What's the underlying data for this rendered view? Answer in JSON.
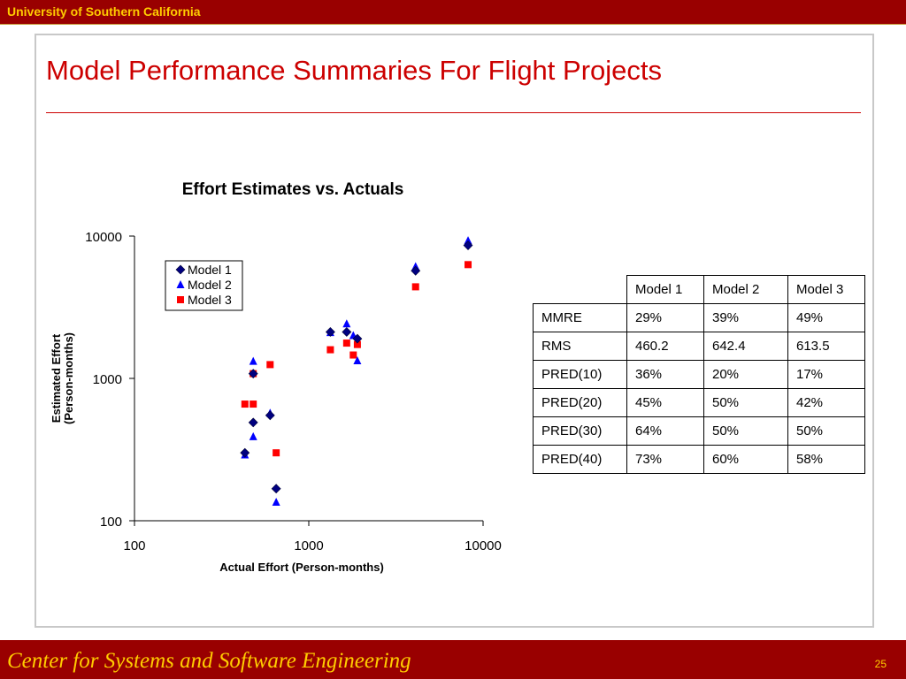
{
  "header": {
    "institution": "University of Southern California"
  },
  "slide": {
    "title": "Model Performance Summaries For Flight Projects"
  },
  "footer": {
    "center_name": "Center for Systems and Software Engineering",
    "page_number": "25"
  },
  "colors": {
    "brand": "#990000",
    "accent_text": "#ffcc00",
    "title": "#cc0000",
    "model1": "#000080",
    "model2": "#0000ff",
    "model3": "#ff0000"
  },
  "chart_data": {
    "type": "scatter",
    "title": "Effort Estimates vs. Actuals",
    "xlabel": "Actual Effort (Person-months)",
    "ylabel_lines": [
      "Estimated Effort",
      "(Person-months)"
    ],
    "x_scale": "log",
    "y_scale": "log",
    "xlim": [
      100,
      10000
    ],
    "ylim": [
      100,
      10000
    ],
    "x_ticks": [
      100,
      1000,
      10000
    ],
    "y_ticks": [
      100,
      1000,
      10000
    ],
    "x_tick_labels": [
      "100",
      "1000",
      "10000"
    ],
    "y_tick_labels": [
      "100",
      "1000",
      "10000"
    ],
    "grid": false,
    "legend_position": "top-left",
    "series": [
      {
        "name": "Model 1",
        "marker": "diamond",
        "color": "#000080",
        "points": [
          [
            430,
            300
          ],
          [
            480,
            1080
          ],
          [
            480,
            490
          ],
          [
            600,
            550
          ],
          [
            650,
            168
          ],
          [
            1330,
            2120
          ],
          [
            1650,
            2120
          ],
          [
            1900,
            1900
          ],
          [
            4100,
            5700
          ],
          [
            8200,
            8600
          ]
        ]
      },
      {
        "name": "Model 2",
        "marker": "triangle",
        "color": "#0000ff",
        "points": [
          [
            430,
            290
          ],
          [
            480,
            1320
          ],
          [
            480,
            390
          ],
          [
            600,
            570
          ],
          [
            650,
            135
          ],
          [
            1330,
            2100
          ],
          [
            1650,
            2420
          ],
          [
            1800,
            2000
          ],
          [
            1900,
            1330
          ],
          [
            4100,
            6100
          ],
          [
            8200,
            9300
          ]
        ]
      },
      {
        "name": "Model 3",
        "marker": "square",
        "color": "#ff0000",
        "points": [
          [
            430,
            660
          ],
          [
            480,
            660
          ],
          [
            480,
            1080
          ],
          [
            600,
            1250
          ],
          [
            650,
            300
          ],
          [
            1330,
            1590
          ],
          [
            1650,
            1770
          ],
          [
            1800,
            1460
          ],
          [
            1900,
            1730
          ],
          [
            4100,
            4400
          ],
          [
            8200,
            6300
          ]
        ]
      }
    ]
  },
  "stats_table": {
    "headers": [
      "",
      "Model 1",
      "Model 2",
      "Model 3"
    ],
    "rows": [
      [
        "MMRE",
        "29%",
        "39%",
        "49%"
      ],
      [
        "RMS",
        "460.2",
        "642.4",
        "613.5"
      ],
      [
        "PRED(10)",
        "36%",
        "20%",
        "17%"
      ],
      [
        "PRED(20)",
        "45%",
        "50%",
        "42%"
      ],
      [
        "PRED(30)",
        "64%",
        "50%",
        "50%"
      ],
      [
        "PRED(40)",
        "73%",
        "60%",
        "58%"
      ]
    ]
  }
}
